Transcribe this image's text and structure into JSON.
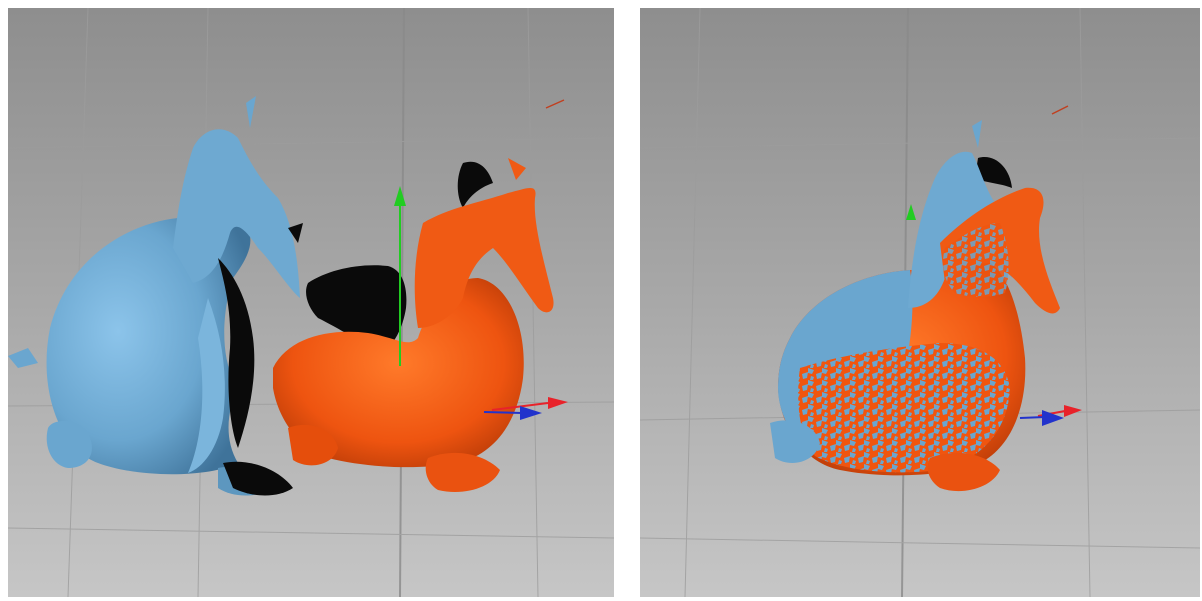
{
  "panels": [
    {
      "id": "before-alignment",
      "point_clouds": [
        "blue-scan",
        "orange-scan"
      ],
      "state": "unaligned"
    },
    {
      "id": "after-alignment",
      "point_clouds": [
        "blue-scan",
        "orange-scan"
      ],
      "state": "aligned"
    }
  ],
  "colors": {
    "background_top": "#8c8c8c",
    "background_bottom": "#c8c8c8",
    "grid_line": "#9a9a9a",
    "scan_blue": "#6aa6cf",
    "scan_blue_shadow": "#3d6f93",
    "scan_orange": "#f0550f",
    "scan_orange_shadow": "#a83204",
    "hole": "#0a0a0a",
    "axis_x": "#e8222a",
    "axis_y": "#22cc22",
    "axis_z": "#2233cc"
  },
  "gizmo_axes": [
    "x-axis",
    "y-axis",
    "z-axis"
  ]
}
